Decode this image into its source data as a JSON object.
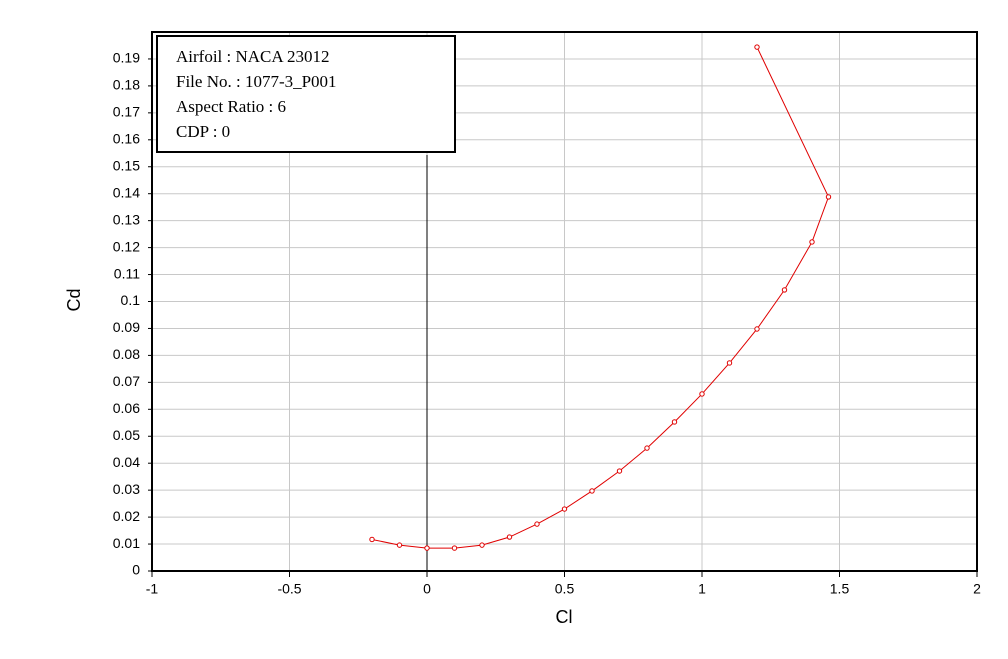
{
  "chart_data": {
    "type": "line",
    "x_label": "Cl",
    "y_label": "Cd",
    "info": [
      "Airfoil : NACA 23012",
      "File No. : 1077-3_P001",
      "Aspect Ratio : 6",
      "CDP : 0"
    ],
    "series": [
      {
        "name": "NACA 23012",
        "color": "#e00000",
        "x": [
          -0.2,
          -0.1,
          0,
          0.1,
          0.2,
          0.3,
          0.4,
          0.5,
          0.6,
          0.7,
          0.8,
          0.9,
          1.0,
          1.1,
          1.2,
          1.3,
          1.4,
          1.46,
          1.2
        ],
        "values": [
          0.0117,
          0.0096,
          0.0085,
          0.0085,
          0.0096,
          0.0126,
          0.0174,
          0.023,
          0.0297,
          0.0371,
          0.0456,
          0.0553,
          0.0657,
          0.0772,
          0.0898,
          0.1043,
          0.1221,
          0.1388,
          0.1944
        ]
      }
    ],
    "xlim": [
      -1,
      2
    ],
    "xticks": [
      -1,
      -0.5,
      0,
      0.5,
      1,
      1.5,
      2
    ],
    "ylim": [
      0,
      0.2
    ],
    "yticks": [
      0,
      0.01,
      0.02,
      0.03,
      0.04,
      0.05,
      0.06,
      0.07,
      0.08,
      0.09,
      0.1,
      0.11,
      0.12,
      0.13,
      0.14,
      0.15,
      0.16,
      0.17,
      0.18,
      0.19
    ],
    "grid": true
  }
}
